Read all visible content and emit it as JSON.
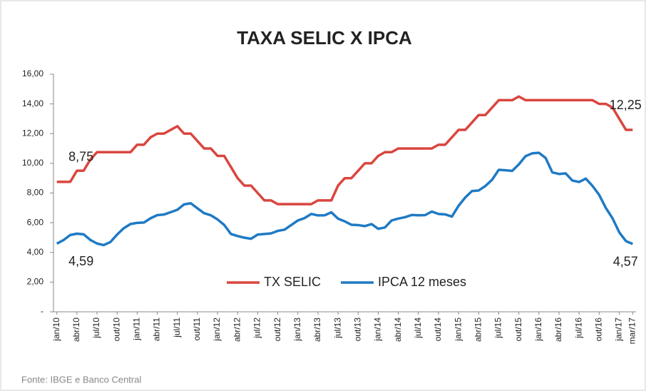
{
  "chart_data": {
    "type": "line",
    "title": "TAXA SELIC X IPCA",
    "source": "Fonte: IBGE e Banco Central",
    "categories": [
      "jan/10",
      null,
      null,
      "abr/10",
      null,
      null,
      "jul/10",
      null,
      null,
      "out/10",
      null,
      null,
      "jan/11",
      null,
      null,
      "abr/11",
      null,
      null,
      "jul/11",
      null,
      null,
      "out/11",
      null,
      null,
      "jan/12",
      null,
      null,
      "abr/12",
      null,
      null,
      "jul/12",
      null,
      null,
      "out/12",
      null,
      null,
      "jan/13",
      null,
      null,
      "abr/13",
      null,
      null,
      "jul/13",
      null,
      null,
      "out/13",
      null,
      null,
      "jan/14",
      null,
      null,
      "abr/14",
      null,
      null,
      "jul/14",
      null,
      null,
      "out/14",
      null,
      null,
      "jan/15",
      null,
      null,
      "abr/15",
      null,
      null,
      "jul/15",
      null,
      null,
      "out/15",
      null,
      null,
      "jan/16",
      null,
      null,
      "abr/16",
      null,
      null,
      "jul/16",
      null,
      null,
      "out/16",
      null,
      null,
      "jan/17",
      null,
      "mar/17"
    ],
    "series": [
      {
        "name": "TX SELIC",
        "color": "#d9463f",
        "values": [
          8.75,
          8.75,
          8.75,
          9.5,
          9.5,
          10.25,
          10.75,
          10.75,
          10.75,
          10.75,
          10.75,
          10.75,
          11.25,
          11.25,
          11.75,
          12,
          12,
          12.25,
          12.5,
          12,
          12,
          11.5,
          11,
          11,
          10.5,
          10.5,
          9.75,
          9,
          8.5,
          8.5,
          8,
          7.5,
          7.5,
          7.25,
          7.25,
          7.25,
          7.25,
          7.25,
          7.25,
          7.5,
          7.5,
          7.5,
          8.5,
          9,
          9,
          9.5,
          10,
          10,
          10.5,
          10.75,
          10.75,
          11,
          11,
          11,
          11,
          11,
          11,
          11.25,
          11.25,
          11.75,
          12.25,
          12.25,
          12.75,
          13.25,
          13.25,
          13.75,
          14.25,
          14.25,
          14.25,
          14.5,
          14.25,
          14.25,
          14.25,
          14.25,
          14.25,
          14.25,
          14.25,
          14.25,
          14.25,
          14.25,
          14.25,
          14,
          14,
          13.75,
          13,
          12.25,
          12.25
        ],
        "value_labels": [
          "8,75",
          null,
          null,
          null,
          null,
          null,
          null,
          null,
          null,
          null,
          null,
          null,
          null,
          null,
          null,
          null,
          null,
          null,
          null,
          null,
          null,
          null,
          null,
          null,
          null,
          null,
          null,
          null,
          null,
          null,
          null,
          null,
          null,
          null,
          null,
          null,
          null,
          null,
          null,
          null,
          null,
          null,
          null,
          null,
          null,
          null,
          null,
          null,
          null,
          null,
          null,
          null,
          null,
          null,
          null,
          null,
          null,
          null,
          null,
          null,
          null,
          null,
          null,
          null,
          null,
          null,
          null,
          null,
          null,
          null,
          null,
          null,
          null,
          null,
          null,
          null,
          null,
          null,
          null,
          null,
          null,
          null,
          null,
          null,
          null,
          null,
          "12,25"
        ]
      },
      {
        "name": "IPCA 12 meses",
        "color": "#1f7ac4",
        "values": [
          4.59,
          4.83,
          5.17,
          5.26,
          5.22,
          4.84,
          4.6,
          4.49,
          4.7,
          5.2,
          5.63,
          5.91,
          5.99,
          6.01,
          6.3,
          6.51,
          6.55,
          6.71,
          6.87,
          7.23,
          7.31,
          6.97,
          6.64,
          6.5,
          6.22,
          5.85,
          5.24,
          5.1,
          4.99,
          4.92,
          5.2,
          5.24,
          5.28,
          5.45,
          5.53,
          5.84,
          6.15,
          6.31,
          6.59,
          6.49,
          6.5,
          6.7,
          6.27,
          6.09,
          5.86,
          5.84,
          5.77,
          5.91,
          5.59,
          5.68,
          6.15,
          6.28,
          6.37,
          6.52,
          6.5,
          6.51,
          6.75,
          6.59,
          6.56,
          6.41,
          7.14,
          7.7,
          8.13,
          8.17,
          8.47,
          8.89,
          9.56,
          9.53,
          9.49,
          9.93,
          10.48,
          10.67,
          10.71,
          10.36,
          9.39,
          9.28,
          9.32,
          8.84,
          8.74,
          8.97,
          8.48,
          7.87,
          6.99,
          6.29,
          5.35,
          4.76,
          4.57
        ],
        "value_labels": [
          "4,59",
          null,
          null,
          null,
          null,
          null,
          null,
          null,
          null,
          null,
          null,
          null,
          null,
          null,
          null,
          null,
          null,
          null,
          null,
          null,
          null,
          null,
          null,
          null,
          null,
          null,
          null,
          null,
          null,
          null,
          null,
          null,
          null,
          null,
          null,
          null,
          null,
          null,
          null,
          null,
          null,
          null,
          null,
          null,
          null,
          null,
          null,
          null,
          null,
          null,
          null,
          null,
          null,
          null,
          null,
          null,
          null,
          null,
          null,
          null,
          null,
          null,
          null,
          null,
          null,
          null,
          null,
          null,
          null,
          null,
          null,
          null,
          null,
          null,
          null,
          null,
          null,
          null,
          null,
          null,
          null,
          null,
          null,
          null,
          null,
          null,
          "4,57"
        ]
      }
    ],
    "ylim": [
      0,
      16
    ],
    "yticks": [
      {
        "value": 0,
        "label": "-"
      },
      {
        "value": 2,
        "label": "2,00"
      },
      {
        "value": 4,
        "label": "4,00"
      },
      {
        "value": 6,
        "label": "6,00"
      },
      {
        "value": 8,
        "label": "8,00"
      },
      {
        "value": 10,
        "label": "10,00"
      },
      {
        "value": 12,
        "label": "12,00"
      },
      {
        "value": 14,
        "label": "14,00"
      },
      {
        "value": 16,
        "label": "16,00"
      }
    ]
  }
}
